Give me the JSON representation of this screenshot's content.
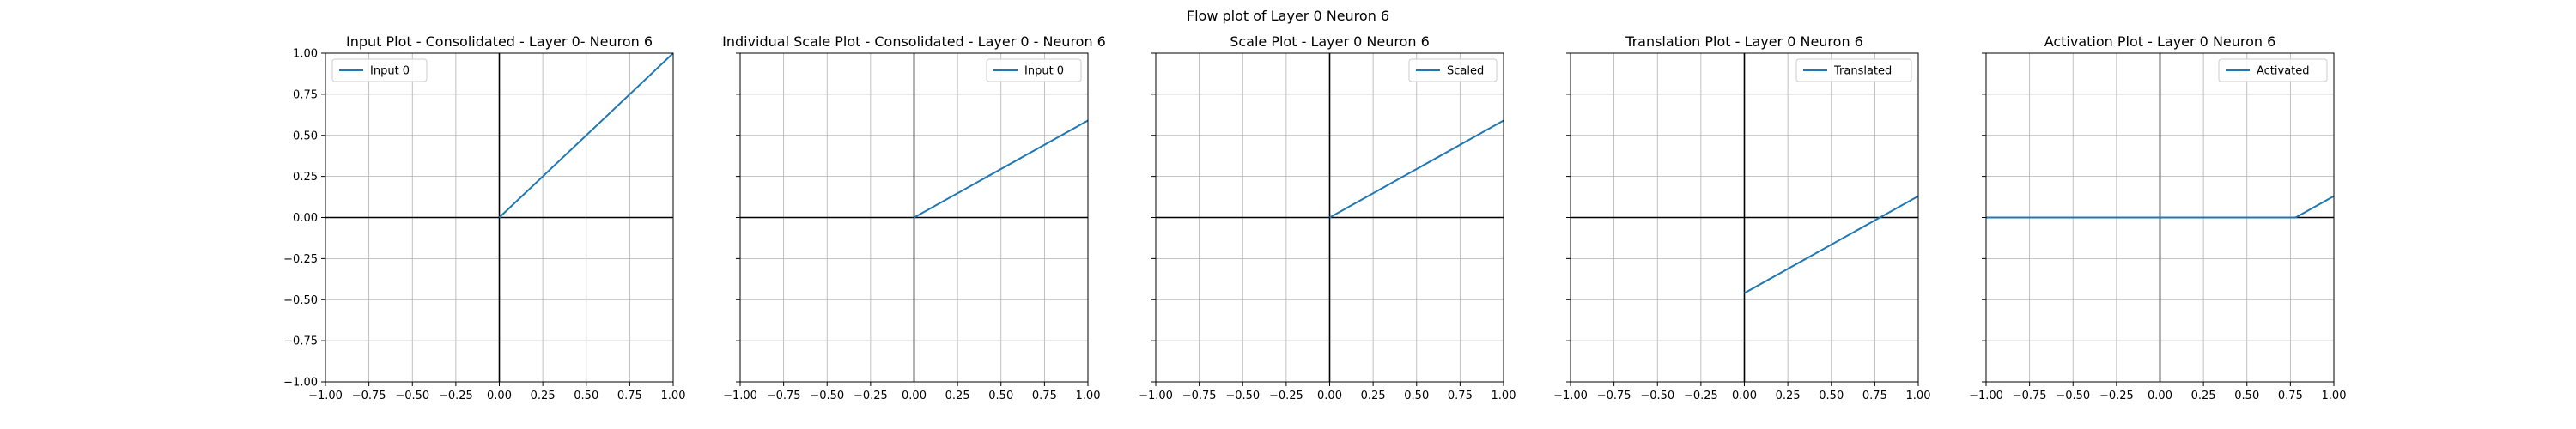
{
  "figure_title": "Flow plot of Layer 0 Neuron 6",
  "chart_data": [
    {
      "type": "line",
      "title": "Input Plot - Consolidated - Layer 0- Neuron 6",
      "xlim": [
        -1,
        1
      ],
      "ylim": [
        -1,
        1
      ],
      "xticks": [
        "−1.00",
        "−0.75",
        "−0.50",
        "−0.25",
        "0.00",
        "0.25",
        "0.50",
        "0.75",
        "1.00"
      ],
      "yticks": [
        "−1.00",
        "−0.75",
        "−0.50",
        "−0.25",
        "0.00",
        "0.25",
        "0.50",
        "0.75",
        "1.00"
      ],
      "show_yticklabels": true,
      "grid": true,
      "legend_position": "upper-left",
      "series": [
        {
          "name": "Input 0",
          "color": "#1f77b4",
          "x": [
            0,
            1
          ],
          "y": [
            0,
            1
          ]
        }
      ]
    },
    {
      "type": "line",
      "title": "Individual Scale Plot - Consolidated - Layer 0 - Neuron 6",
      "xlim": [
        -1,
        1
      ],
      "ylim": [
        -1,
        1
      ],
      "xticks": [
        "−1.00",
        "−0.75",
        "−0.50",
        "−0.25",
        "0.00",
        "0.25",
        "0.50",
        "0.75",
        "1.00"
      ],
      "show_yticklabels": false,
      "grid": true,
      "legend_position": "upper-right",
      "series": [
        {
          "name": "Input 0",
          "color": "#1f77b4",
          "x": [
            0,
            1
          ],
          "y": [
            0,
            0.59
          ]
        }
      ]
    },
    {
      "type": "line",
      "title": "Scale Plot - Layer 0 Neuron 6",
      "xlim": [
        -1,
        1
      ],
      "ylim": [
        -1,
        1
      ],
      "xticks": [
        "−1.00",
        "−0.75",
        "−0.50",
        "−0.25",
        "0.00",
        "0.25",
        "0.50",
        "0.75",
        "1.00"
      ],
      "show_yticklabels": false,
      "grid": true,
      "legend_position": "upper-right",
      "series": [
        {
          "name": "Scaled",
          "color": "#1f77b4",
          "x": [
            0,
            1
          ],
          "y": [
            0,
            0.59
          ]
        }
      ]
    },
    {
      "type": "line",
      "title": "Translation Plot - Layer 0 Neuron 6",
      "xlim": [
        -1,
        1
      ],
      "ylim": [
        -1,
        1
      ],
      "xticks": [
        "−1.00",
        "−0.75",
        "−0.50",
        "−0.25",
        "0.00",
        "0.25",
        "0.50",
        "0.75",
        "1.00"
      ],
      "show_yticklabels": false,
      "grid": true,
      "legend_position": "upper-right",
      "series": [
        {
          "name": "Translated",
          "color": "#1f77b4",
          "x": [
            0,
            1
          ],
          "y": [
            -0.46,
            0.13
          ]
        }
      ]
    },
    {
      "type": "line",
      "title": "Activation Plot - Layer 0 Neuron 6",
      "xlim": [
        -1,
        1
      ],
      "ylim": [
        -1,
        1
      ],
      "xticks": [
        "−1.00",
        "−0.75",
        "−0.50",
        "−0.25",
        "0.00",
        "0.25",
        "0.50",
        "0.75",
        "1.00"
      ],
      "show_yticklabels": false,
      "grid": true,
      "legend_position": "upper-right",
      "series": [
        {
          "name": "Activated",
          "color": "#1f77b4",
          "x": [
            -1,
            0.78,
            1
          ],
          "y": [
            0,
            0,
            0.13
          ]
        }
      ]
    }
  ]
}
